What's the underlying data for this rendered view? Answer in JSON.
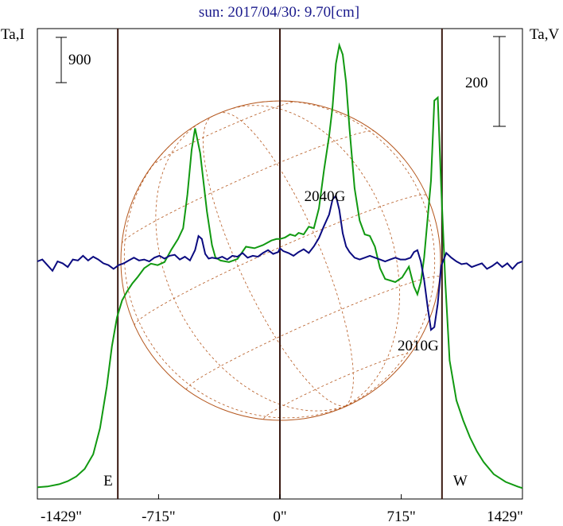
{
  "chart_data": {
    "type": "line",
    "title": "sun: 2017/04/30: 9.70[cm]",
    "left_axis_label": "Ta,I",
    "right_axis_label": "Ta,V",
    "left_scale_bar_value": "900",
    "right_scale_bar_value": "200",
    "x_unit": "arcsec",
    "xlim": [
      -1429,
      1429
    ],
    "x_ticks": [
      {
        "value": -1429,
        "label": "-1429\""
      },
      {
        "value": -715,
        "label": "-715\""
      },
      {
        "value": 0,
        "label": "0\""
      },
      {
        "value": 715,
        "label": "715\""
      },
      {
        "value": 1429,
        "label": "1429\""
      }
    ],
    "vertical_markers": [
      {
        "x": -955,
        "label": "E"
      },
      {
        "x": 0,
        "label": ""
      },
      {
        "x": 955,
        "label": "W"
      }
    ],
    "annotations": [
      {
        "text": "2040G",
        "x": 330
      },
      {
        "text": "2010G",
        "x": 880
      }
    ],
    "colors": {
      "intensity": "#119911",
      "polarization": "#0b0b80",
      "grid": "#b5581f",
      "title": "#1a1a8c"
    },
    "series": [
      {
        "key": "intensity",
        "x": [
          -1429,
          -1370,
          -1300,
          -1250,
          -1200,
          -1150,
          -1100,
          -1060,
          -1020,
          -990,
          -960,
          -930,
          -900,
          -870,
          -840,
          -800,
          -760,
          -720,
          -680,
          -640,
          -600,
          -570,
          -545,
          -520,
          -500,
          -470,
          -430,
          -400,
          -380,
          -350,
          -300,
          -250,
          -200,
          -150,
          -100,
          -50,
          -20,
          0,
          30,
          60,
          90,
          110,
          140,
          170,
          200,
          230,
          260,
          290,
          310,
          330,
          350,
          370,
          390,
          410,
          440,
          470,
          500,
          530,
          560,
          590,
          620,
          650,
          680,
          720,
          760,
          790,
          810,
          830,
          850,
          870,
          890,
          910,
          930,
          950,
          975,
          1000,
          1040,
          1080,
          1120,
          1160,
          1200,
          1260,
          1330,
          1400,
          1429
        ],
        "y": [
          45,
          50,
          65,
          85,
          115,
          165,
          260,
          430,
          700,
          960,
          1150,
          1260,
          1320,
          1370,
          1410,
          1470,
          1500,
          1490,
          1510,
          1590,
          1660,
          1730,
          1950,
          2240,
          2380,
          2220,
          1840,
          1620,
          1540,
          1520,
          1510,
          1530,
          1610,
          1600,
          1620,
          1650,
          1660,
          1660,
          1670,
          1690,
          1680,
          1700,
          1690,
          1740,
          1730,
          1860,
          2110,
          2330,
          2520,
          2800,
          2920,
          2860,
          2680,
          2380,
          1990,
          1780,
          1690,
          1680,
          1610,
          1470,
          1400,
          1390,
          1380,
          1410,
          1480,
          1350,
          1300,
          1380,
          1540,
          1790,
          2040,
          2560,
          2580,
          2000,
          1370,
          870,
          610,
          480,
          370,
          280,
          210,
          130,
          80,
          50,
          40
        ]
      },
      {
        "key": "polarization",
        "x": [
          -1429,
          -1400,
          -1370,
          -1340,
          -1310,
          -1280,
          -1250,
          -1220,
          -1190,
          -1160,
          -1130,
          -1100,
          -1070,
          -1040,
          -1010,
          -980,
          -950,
          -920,
          -890,
          -860,
          -830,
          -800,
          -770,
          -740,
          -710,
          -680,
          -650,
          -620,
          -590,
          -560,
          -530,
          -500,
          -480,
          -460,
          -440,
          -420,
          -400,
          -370,
          -340,
          -310,
          -280,
          -250,
          -220,
          -190,
          -160,
          -130,
          -100,
          -70,
          -40,
          -10,
          0,
          20,
          50,
          80,
          110,
          140,
          170,
          200,
          230,
          260,
          290,
          310,
          330,
          350,
          370,
          390,
          410,
          440,
          470,
          500,
          530,
          560,
          590,
          620,
          650,
          680,
          710,
          740,
          770,
          790,
          810,
          830,
          850,
          870,
          890,
          910,
          930,
          950,
          980,
          1010,
          1040,
          1070,
          1100,
          1130,
          1160,
          1190,
          1220,
          1250,
          1280,
          1310,
          1340,
          1370,
          1400,
          1429
        ],
        "y": [
          0,
          2,
          -4,
          -10,
          0,
          -2,
          -6,
          2,
          1,
          6,
          1,
          5,
          2,
          -2,
          -4,
          -8,
          -4,
          -2,
          1,
          4,
          1,
          2,
          0,
          4,
          6,
          3,
          6,
          7,
          2,
          5,
          1,
          12,
          27,
          24,
          8,
          3,
          4,
          3,
          5,
          2,
          6,
          5,
          9,
          4,
          6,
          5,
          9,
          12,
          8,
          10,
          14,
          11,
          9,
          6,
          10,
          13,
          9,
          16,
          25,
          38,
          50,
          66,
          70,
          55,
          30,
          16,
          10,
          4,
          2,
          4,
          6,
          4,
          2,
          0,
          2,
          4,
          2,
          2,
          4,
          10,
          12,
          0,
          -20,
          -48,
          -73,
          -70,
          -45,
          -5,
          9,
          4,
          0,
          -3,
          -2,
          -6,
          -4,
          -2,
          -8,
          -5,
          -1,
          -6,
          -2,
          -8,
          -2,
          0
        ]
      }
    ]
  }
}
